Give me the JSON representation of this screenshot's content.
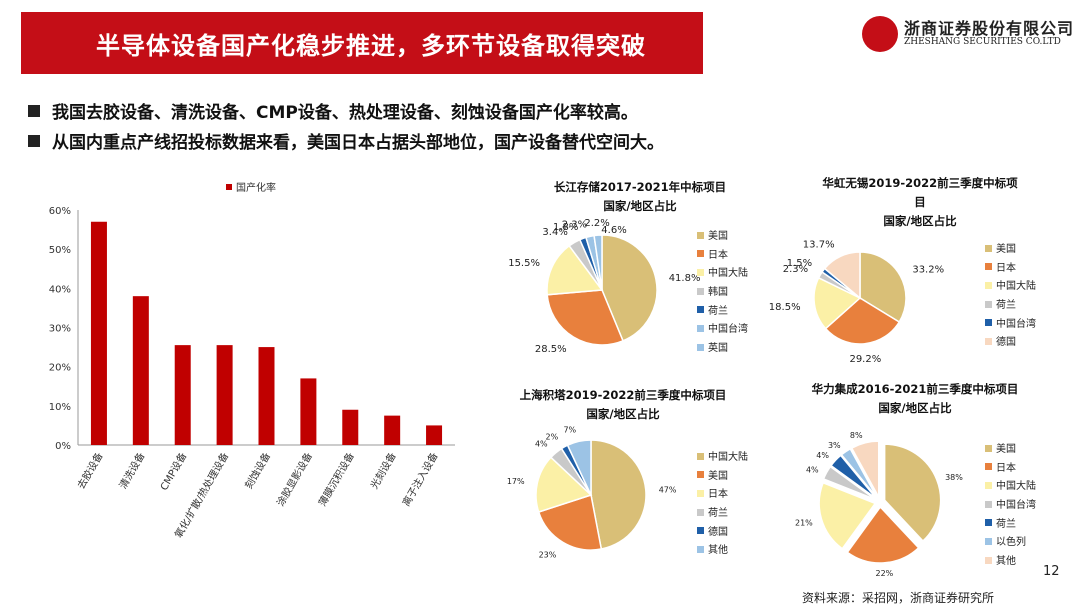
{
  "header": {
    "title": "半导体设备国产化稳步推进，多环节设备取得突破",
    "logo_cn": "浙商证券股份有限公司",
    "logo_en": "ZHESHANG SECURITIES CO.LTD"
  },
  "bullets": [
    "我国去胶设备、清洗设备、CMP设备、热处理设备、刻蚀设备国产化率较高。",
    "从国内重点产线招投标数据来看，美国日本占据头部地位，国产设备替代空间大。"
  ],
  "colors": {
    "brand": "#c40e17",
    "bar": "#c00000"
  },
  "chart_data": [
    {
      "type": "bar",
      "legend": "国产化率",
      "categories": [
        "去胶设备",
        "清洗设备",
        "CMP设备",
        "氧化/扩散/热处理设备",
        "刻蚀设备",
        "涂胶显影设备",
        "薄膜沉积设备",
        "光刻设备",
        "离子注入设备"
      ],
      "values": [
        57,
        38,
        25.5,
        25.5,
        25,
        17,
        9,
        7.5,
        5
      ],
      "ylim": [
        0,
        60
      ],
      "yticks": [
        "0%",
        "10%",
        "20%",
        "30%",
        "40%",
        "50%",
        "60%"
      ]
    },
    {
      "type": "pie",
      "title": "长江存储2017-2021年中标项目",
      "subtitle": "国家/地区占比",
      "labels": [
        "美国",
        "日本",
        "中国大陆",
        "韩国",
        "荷兰",
        "中国台湾",
        "英国"
      ],
      "values": [
        41.8,
        28.5,
        15.5,
        3.4,
        1.8,
        2.3,
        2.2
      ],
      "value_labels": [
        "41.8%",
        "28.5%",
        "15.5%",
        "3.4%",
        "1.8%",
        "2.3%",
        "2.2%"
      ],
      "extra_label": "4.6%"
    },
    {
      "type": "pie",
      "title": "华虹无锡2019-2022前三季度中标项",
      "title2": "目",
      "subtitle": "国家/地区占比",
      "labels": [
        "美国",
        "日本",
        "中国大陆",
        "荷兰",
        "中国台湾",
        "德国"
      ],
      "values": [
        33.2,
        29.2,
        18.5,
        2.3,
        1.5,
        13.7
      ],
      "value_labels": [
        "33.2%",
        "29.2%",
        "18.5%",
        "2.3%",
        "1.5%",
        "13.7%"
      ]
    },
    {
      "type": "pie",
      "title": "上海积塔2019-2022前三季度中标项目",
      "subtitle": "国家/地区占比",
      "labels": [
        "中国大陆",
        "美国",
        "日本",
        "荷兰",
        "德国",
        "其他"
      ],
      "values": [
        47,
        23,
        17,
        4,
        2,
        7
      ],
      "value_labels": [
        "47%",
        "23%",
        "17%",
        "4%",
        "2%",
        "7%"
      ]
    },
    {
      "type": "pie",
      "title": "华力集成2016-2021前三季度中标项目",
      "subtitle": "国家/地区占比",
      "labels": [
        "美国",
        "日本",
        "中国大陆",
        "中国台湾",
        "荷兰",
        "以色列",
        "其他"
      ],
      "values": [
        38,
        22,
        21,
        4,
        4,
        3,
        8
      ],
      "value_labels": [
        "38%",
        "22%",
        "21%",
        "4%",
        "4%",
        "3%",
        "8%"
      ],
      "exploded": true
    }
  ],
  "footer": {
    "page": "12",
    "source": "资料来源：采招网，浙商证券研究所"
  }
}
